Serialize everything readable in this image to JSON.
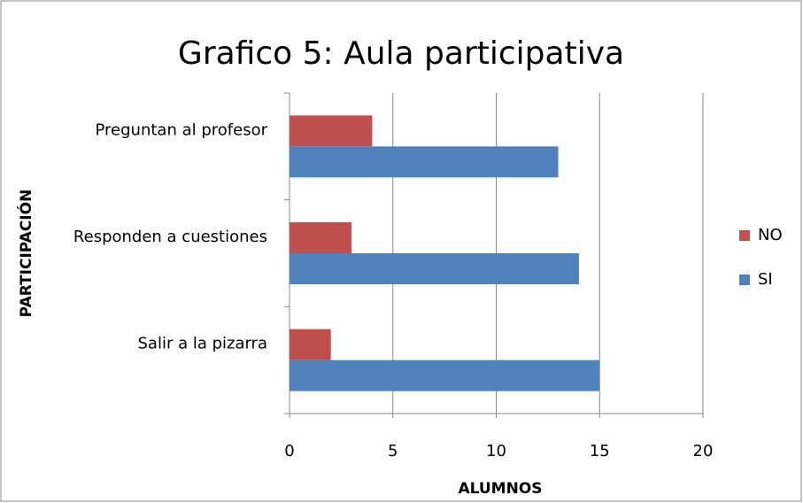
{
  "chart_data": {
    "type": "bar",
    "orientation": "horizontal",
    "title": "Grafico 5: Aula participativa",
    "x_label": "ALUMNOS",
    "y_label": "PARTICIPACIÓN",
    "categories": [
      "Preguntan al profesor",
      "Responden a cuestiones",
      "Salir a la pizarra"
    ],
    "series": [
      {
        "name": "NO",
        "color": "#c0504d",
        "values": [
          4,
          3,
          2
        ]
      },
      {
        "name": "SI",
        "color": "#4f81bd",
        "values": [
          13,
          14,
          15
        ]
      }
    ],
    "xlim": [
      0,
      20
    ],
    "xticks": [
      0,
      5,
      10,
      15,
      20
    ],
    "grid": true,
    "legend": "right"
  }
}
